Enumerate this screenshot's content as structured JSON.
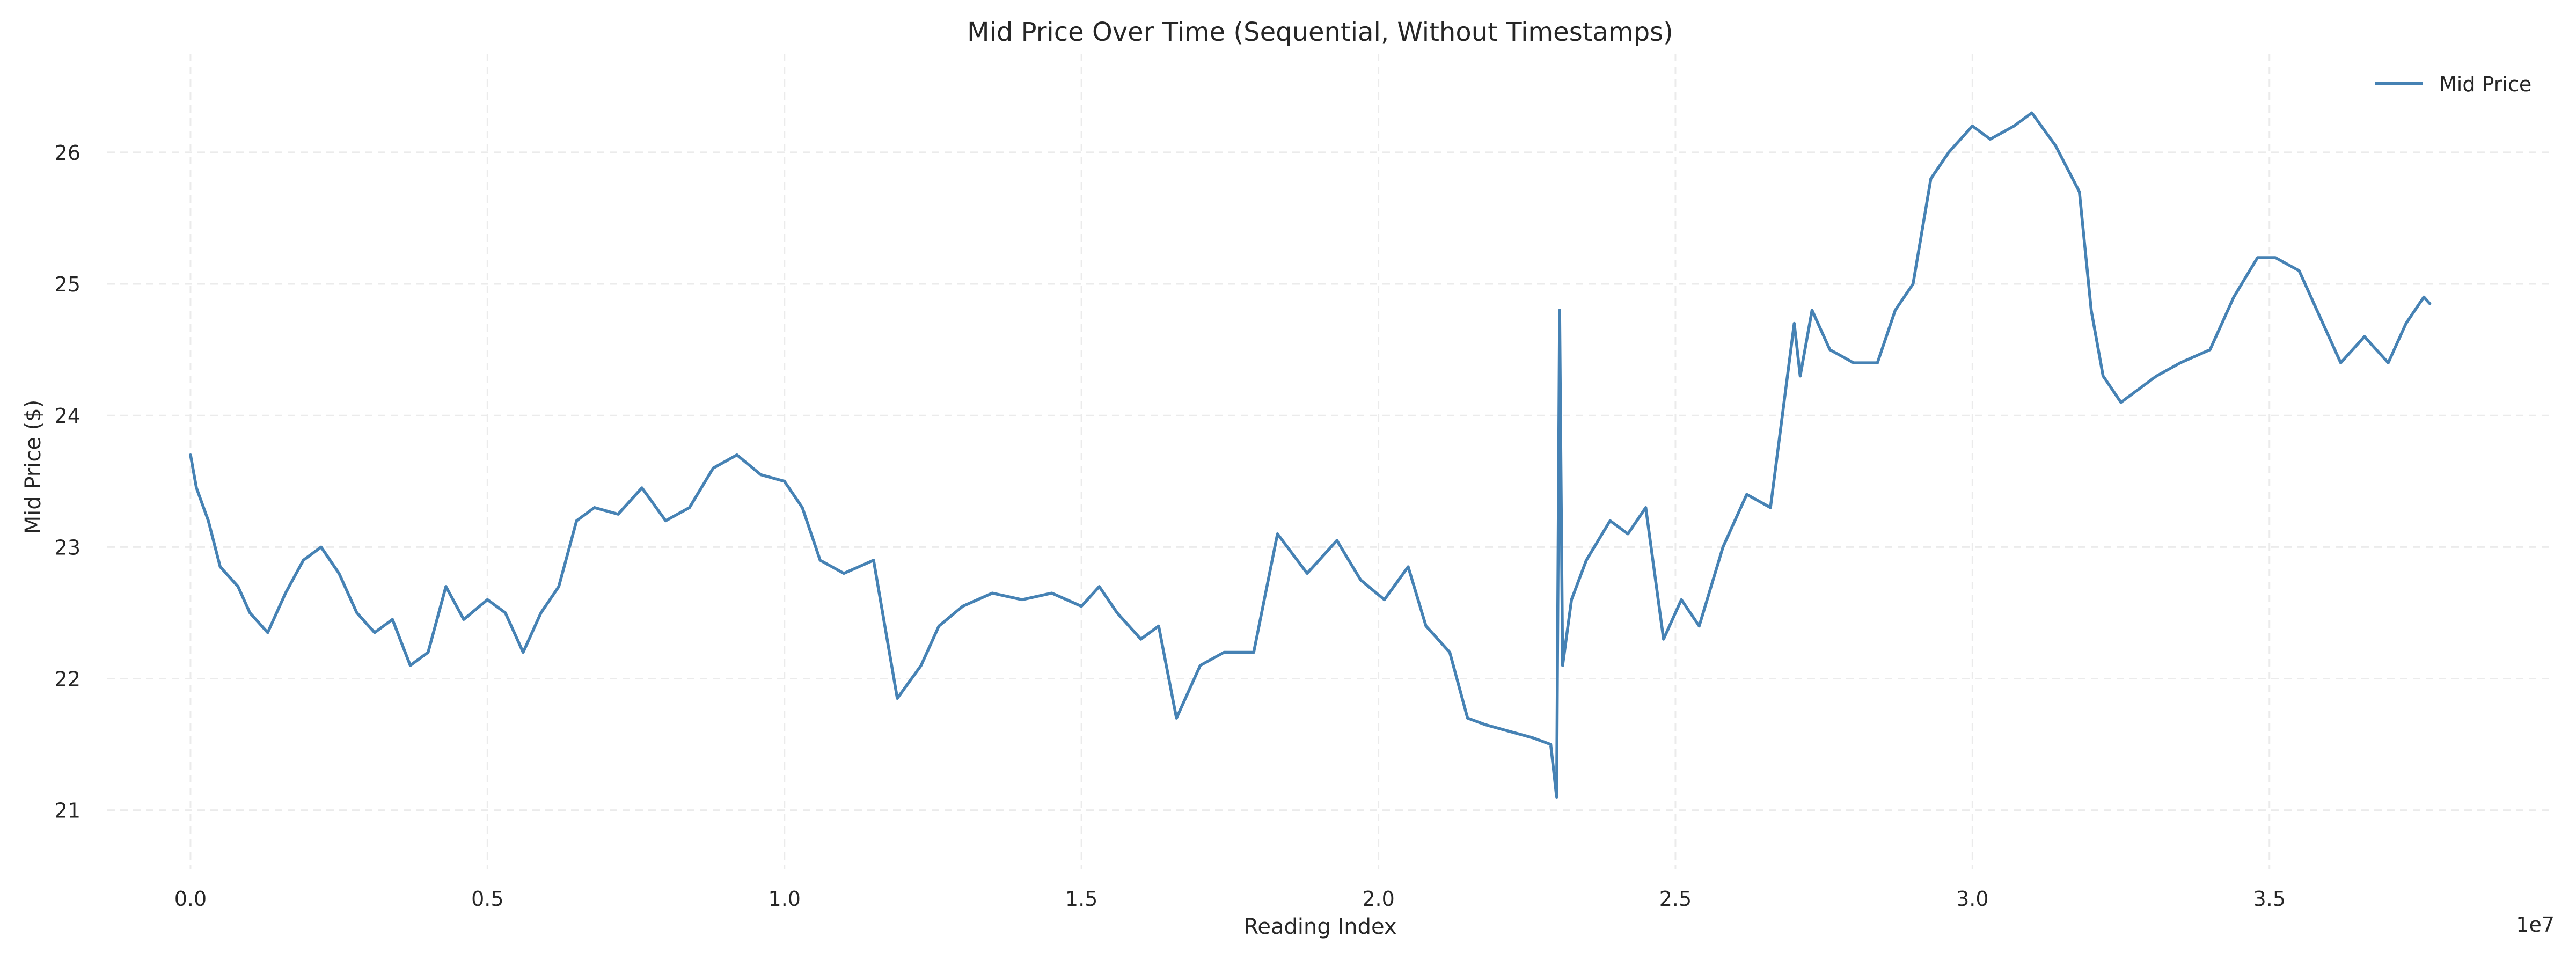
{
  "chart_data": {
    "type": "line",
    "title": "Mid Price Over Time (Sequential, Without Timestamps)",
    "xlabel": "Reading Index",
    "ylabel": "Mid Price ($)",
    "x_offset_label": "1e7",
    "xlim": [
      -1.4,
      39.8
    ],
    "ylim": [
      20.55,
      26.75
    ],
    "x_unit_multiplier": 10000000,
    "x_ticks": [
      0,
      5,
      10,
      15,
      20,
      25,
      30,
      35
    ],
    "x_tick_labels": [
      "0.0",
      "0.5",
      "1.0",
      "1.5",
      "2.0",
      "2.5",
      "3.0",
      "3.5"
    ],
    "y_ticks": [
      21,
      22,
      23,
      24,
      25,
      26
    ],
    "y_tick_labels": [
      "21",
      "22",
      "23",
      "24",
      "25",
      "26"
    ],
    "grid": true,
    "legend_position": "top-right",
    "series": [
      {
        "name": "Mid Price",
        "color": "#4682b4",
        "x": [
          0,
          0.1,
          0.3,
          0.5,
          0.8,
          1.0,
          1.3,
          1.6,
          1.9,
          2.2,
          2.5,
          2.8,
          3.1,
          3.4,
          3.7,
          4.0,
          4.3,
          4.6,
          5.0,
          5.3,
          5.6,
          5.9,
          6.2,
          6.5,
          6.8,
          7.2,
          7.6,
          8.0,
          8.4,
          8.8,
          9.2,
          9.6,
          10.0,
          10.3,
          10.6,
          11.0,
          11.5,
          11.9,
          12.3,
          12.6,
          13.0,
          13.5,
          14.0,
          14.5,
          15.0,
          15.3,
          15.6,
          16.0,
          16.3,
          16.6,
          17.0,
          17.4,
          17.9,
          18.3,
          18.8,
          19.3,
          19.7,
          20.1,
          20.5,
          20.8,
          21.2,
          21.5,
          21.8,
          22.2,
          22.6,
          22.9,
          23.0,
          23.05,
          23.1,
          23.25,
          23.5,
          23.9,
          24.2,
          24.5,
          24.8,
          25.1,
          25.4,
          25.8,
          26.2,
          26.6,
          27.0,
          27.1,
          27.3,
          27.6,
          28.0,
          28.4,
          28.7,
          29.0,
          29.3,
          29.6,
          30.0,
          30.3,
          30.7,
          31.0,
          31.4,
          31.8,
          32.0,
          32.2,
          32.5,
          32.8,
          33.1,
          33.5,
          34.0,
          34.4,
          34.8,
          35.1,
          35.5,
          35.8,
          36.2,
          36.6,
          37.0,
          37.3,
          37.6,
          37.7
        ],
        "y": [
          23.7,
          23.45,
          23.2,
          22.85,
          22.7,
          22.5,
          22.35,
          22.65,
          22.9,
          23.0,
          22.8,
          22.5,
          22.35,
          22.45,
          22.1,
          22.2,
          22.7,
          22.45,
          22.6,
          22.5,
          22.2,
          22.5,
          22.7,
          23.2,
          23.3,
          23.25,
          23.45,
          23.2,
          23.3,
          23.6,
          23.7,
          23.55,
          23.5,
          23.3,
          22.9,
          22.8,
          22.9,
          21.85,
          22.1,
          22.4,
          22.55,
          22.65,
          22.6,
          22.65,
          22.55,
          22.7,
          22.5,
          22.3,
          22.4,
          21.7,
          22.1,
          22.2,
          22.2,
          23.1,
          22.8,
          23.05,
          22.75,
          22.6,
          22.85,
          22.4,
          22.2,
          21.7,
          21.65,
          21.6,
          21.55,
          21.5,
          21.1,
          24.8,
          22.1,
          22.6,
          22.9,
          23.2,
          23.1,
          23.3,
          22.3,
          22.6,
          22.4,
          23.0,
          23.4,
          23.3,
          24.7,
          24.3,
          24.8,
          24.5,
          24.4,
          24.4,
          24.8,
          25.0,
          25.8,
          26.0,
          26.2,
          26.1,
          26.2,
          26.3,
          26.05,
          25.7,
          24.8,
          24.3,
          24.1,
          24.2,
          24.3,
          24.4,
          24.5,
          24.9,
          25.2,
          25.2,
          25.1,
          24.8,
          24.4,
          24.6,
          24.4,
          24.7,
          24.9,
          24.85
        ]
      }
    ]
  }
}
